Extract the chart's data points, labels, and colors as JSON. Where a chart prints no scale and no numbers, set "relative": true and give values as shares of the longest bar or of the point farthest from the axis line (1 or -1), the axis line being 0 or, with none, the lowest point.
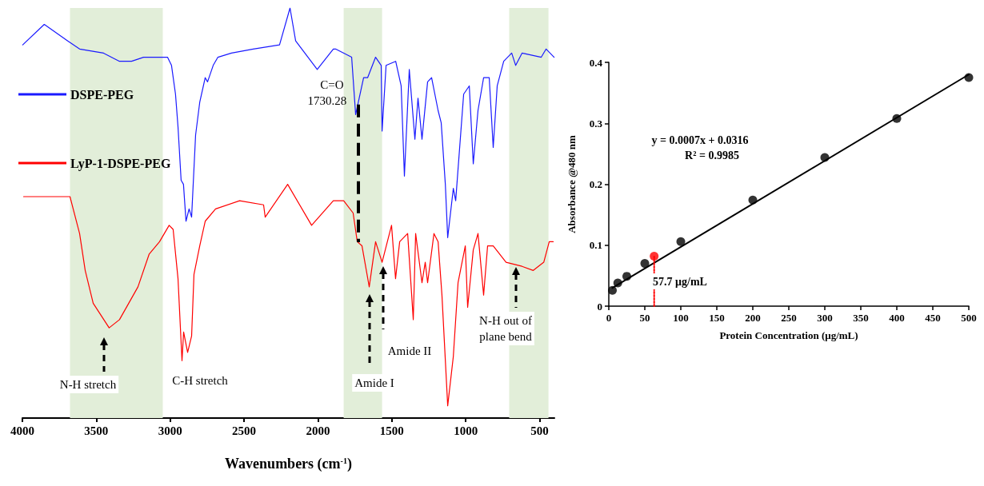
{
  "chart_data": [
    {
      "type": "line",
      "relative": true,
      "xlabel": "Wavenumbers (cm$^{-1}$)",
      "xlim": [
        4000,
        400
      ],
      "xticks": [
        4000,
        3500,
        3000,
        2500,
        2000,
        1500,
        1000,
        500
      ],
      "legend": "left",
      "marker": "none",
      "line_style": "solid",
      "series": [
        {
          "name": "DSPE-PEG",
          "color": "#1a1aff",
          "x": [
            3998,
            3852,
            3695,
            3613,
            3451,
            3343,
            3261,
            3180,
            3072,
            3018,
            2991,
            2964,
            2947,
            2926,
            2910,
            2893,
            2872,
            2855,
            2828,
            2800,
            2763,
            2747,
            2709,
            2677,
            2585,
            2438,
            2260,
            2189,
            2151,
            2005,
            1896,
            1881,
            1772,
            1745,
            1691,
            1664,
            1610,
            1572,
            1566,
            1539,
            1474,
            1437,
            1415,
            1382,
            1344,
            1323,
            1296,
            1258,
            1231,
            1187,
            1166,
            1138,
            1122,
            1084,
            1068,
            1014,
            976,
            949,
            917,
            879,
            841,
            814,
            787,
            743,
            689,
            662,
            619,
            489,
            456,
            402
          ],
          "values": [
            0.91,
            0.96,
            0.92,
            0.9,
            0.89,
            0.87,
            0.87,
            0.88,
            0.88,
            0.88,
            0.86,
            0.79,
            0.71,
            0.58,
            0.57,
            0.48,
            0.51,
            0.49,
            0.69,
            0.77,
            0.83,
            0.82,
            0.86,
            0.88,
            0.89,
            0.9,
            0.91,
            1.0,
            0.92,
            0.85,
            0.9,
            0.9,
            0.88,
            0.74,
            0.83,
            0.83,
            0.88,
            0.86,
            0.7,
            0.86,
            0.87,
            0.81,
            0.59,
            0.85,
            0.68,
            0.78,
            0.68,
            0.82,
            0.83,
            0.75,
            0.72,
            0.57,
            0.44,
            0.56,
            0.53,
            0.79,
            0.81,
            0.62,
            0.75,
            0.83,
            0.83,
            0.66,
            0.81,
            0.87,
            0.89,
            0.86,
            0.89,
            0.88,
            0.9,
            0.88
          ]
        },
        {
          "name": "LyP-1-DSPE-PEG",
          "color": "#ff0000",
          "x": [
            3992,
            3678,
            3613,
            3575,
            3521,
            3413,
            3343,
            3218,
            3142,
            3072,
            3007,
            2980,
            2947,
            2920,
            2909,
            2882,
            2855,
            2839,
            2800,
            2763,
            2693,
            2530,
            2368,
            2357,
            2205,
            2043,
            1896,
            1826,
            1762,
            1734,
            1702,
            1653,
            1610,
            1566,
            1502,
            1475,
            1447,
            1393,
            1355,
            1339,
            1296,
            1274,
            1258,
            1215,
            1187,
            1161,
            1122,
            1084,
            1052,
            1003,
            987,
            949,
            917,
            879,
            852,
            814,
            727,
            619,
            543,
            472,
            435,
            408
          ],
          "values": [
            0.54,
            0.54,
            0.45,
            0.36,
            0.28,
            0.22,
            0.24,
            0.32,
            0.4,
            0.43,
            0.47,
            0.46,
            0.34,
            0.14,
            0.21,
            0.16,
            0.2,
            0.35,
            0.42,
            0.48,
            0.51,
            0.53,
            0.52,
            0.49,
            0.57,
            0.47,
            0.53,
            0.53,
            0.5,
            0.43,
            0.42,
            0.32,
            0.43,
            0.38,
            0.47,
            0.34,
            0.43,
            0.45,
            0.24,
            0.45,
            0.33,
            0.38,
            0.33,
            0.45,
            0.43,
            0.3,
            0.03,
            0.15,
            0.33,
            0.42,
            0.27,
            0.41,
            0.45,
            0.3,
            0.42,
            0.42,
            0.38,
            0.37,
            0.36,
            0.38,
            0.43,
            0.43
          ]
        }
      ],
      "bands": [
        {
          "axis": "x",
          "from": 3678,
          "to": 3050,
          "color": "#e2eed9"
        },
        {
          "axis": "x",
          "from": 1826,
          "to": 1566,
          "color": "#e2eed9"
        },
        {
          "axis": "x",
          "from": 706,
          "to": 440,
          "color": "#e2eed9"
        }
      ],
      "ref_lines": [
        {
          "axis": "x",
          "value": 1730.28,
          "label": "C=O 1730.28",
          "color": "#000000",
          "line_style": "dashed"
        }
      ],
      "annotations": [
        "N-H stretch",
        "C-H stretch",
        "Amide I",
        "Amide II",
        "N-H out of plane bend"
      ]
    },
    {
      "type": "scatter",
      "xlabel": "Protein Concentration (μg/mL)",
      "ylabel": "Absorbance @480 nm",
      "xlim": [
        0,
        500
      ],
      "xticks": [
        0,
        50,
        100,
        150,
        200,
        250,
        300,
        350,
        400,
        450,
        500
      ],
      "ylim": [
        0,
        0.4
      ],
      "yticks": [
        0,
        0.1,
        0.2,
        0.3,
        0.4
      ],
      "series": [
        {
          "color": "#000000",
          "marker": "circle",
          "x": [
            5,
            12.5,
            25,
            50,
            100,
            200,
            300,
            400,
            500
          ],
          "values": [
            0.026,
            0.038,
            0.049,
            0.07,
            0.106,
            0.174,
            0.244,
            0.308,
            0.375
          ]
        },
        {
          "type": "line",
          "color": "#000000",
          "marker": "none",
          "line_style": "solid",
          "x": [
            5,
            500
          ],
          "values": [
            0.03,
            0.38
          ]
        },
        {
          "color": "#ff0000",
          "marker": "circle",
          "x": [
            63
          ],
          "values": [
            0.082
          ]
        },
        {
          "type": "line",
          "color": "#ff0000",
          "marker": "none",
          "line_style": "dotted",
          "x": [
            63,
            63
          ],
          "values": [
            0,
            0.082
          ]
        }
      ],
      "annotations": [
        "y = 0.0007x + 0.0316",
        "R² = 0.9985",
        "57.7 μg/mL"
      ]
    }
  ]
}
